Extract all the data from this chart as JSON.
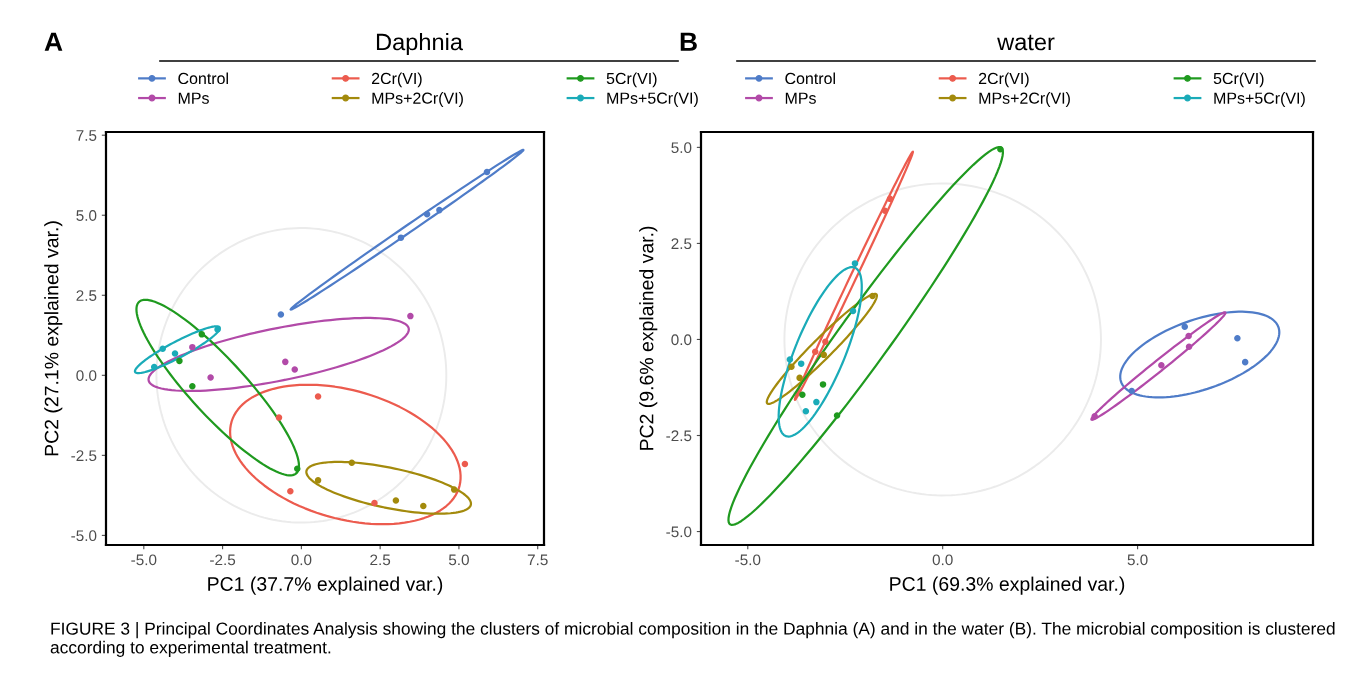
{
  "chart_data": [
    {
      "type": "scatter",
      "title": "Daphnia",
      "xlabel": "PC1 (37.7% explained var.)",
      "ylabel": "PC2 (27.1% explained var.)",
      "annotations": [
        "A"
      ],
      "xlim": [
        -6.2,
        7.7
      ],
      "ylim": [
        -5.3,
        7.6
      ],
      "xticks": [
        {
          "value": -5,
          "label": "-5.0"
        },
        {
          "value": -2.5,
          "label": "-2.5"
        },
        {
          "value": 0,
          "label": "0.0"
        },
        {
          "value": 2.5,
          "label": "2.5"
        },
        {
          "value": 5,
          "label": "5.0"
        },
        {
          "value": 7.5,
          "label": "7.5"
        }
      ],
      "yticks": [
        {
          "value": -5,
          "label": "-5.0"
        },
        {
          "value": -2.5,
          "label": "-2.5"
        },
        {
          "value": 0,
          "label": "0.0"
        },
        {
          "value": 2.5,
          "label": "2.5"
        },
        {
          "value": 5,
          "label": "5.0"
        },
        {
          "value": 7.5,
          "label": "7.5"
        }
      ],
      "grid": false,
      "legend": "top",
      "marker": "circle",
      "series": [
        {
          "type": "scatter",
          "name": "Control",
          "color": "#4f7cc8",
          "x": [
            -0.65,
            3.16,
            3.99,
            4.38,
            5.89
          ],
          "values": [
            1.9,
            4.3,
            5.03,
            5.16,
            6.35
          ]
        },
        {
          "type": "scatter",
          "name": "MPs",
          "color": "#b24aa8",
          "x": [
            3.46,
            -3.46,
            -2.88,
            -0.51,
            -0.21
          ],
          "values": [
            1.85,
            0.88,
            -0.07,
            0.42,
            0.18
          ]
        },
        {
          "type": "scatter",
          "name": "2Cr(VI)",
          "color": "#ec5b4e",
          "x": [
            0.53,
            -0.71,
            -0.35,
            2.32,
            5.19
          ],
          "values": [
            -0.66,
            -1.32,
            -3.62,
            -3.99,
            -2.77
          ]
        },
        {
          "type": "scatter",
          "name": "MPs+2Cr(VI)",
          "color": "#a38a0c",
          "x": [
            1.6,
            0.53,
            3.0,
            3.87,
            4.85
          ],
          "values": [
            -2.73,
            -3.28,
            -3.91,
            -4.08,
            -3.57
          ]
        },
        {
          "type": "scatter",
          "name": "5Cr(VI)",
          "color": "#1f9a1f",
          "x": [
            -3.16,
            -3.87,
            -3.46,
            -0.13
          ],
          "values": [
            1.28,
            0.45,
            -0.34,
            -2.92
          ]
        },
        {
          "type": "scatter",
          "name": "MPs+5Cr(VI)",
          "color": "#1aabb8",
          "x": [
            -2.66,
            -4.4,
            -4.01,
            -4.67
          ],
          "values": [
            1.43,
            0.83,
            0.68,
            0.26
          ]
        }
      ]
    },
    {
      "type": "scatter",
      "title": "water",
      "xlabel": "PC1 (69.3% explained var.)",
      "ylabel": "PC2 (9.6% explained var.)",
      "annotations": [
        "B",
        "FIGURE 3 | Principal Coordinates Analysis showing the clusters of microbial composition in the Daphnia (A) and in the water (B). The microbial composition is clustered according to experimental treatment."
      ],
      "xlim": [
        -6.2,
        9.5
      ],
      "ylim": [
        -5.35,
        5.4
      ],
      "xticks": [
        {
          "value": -5,
          "label": "-5.0"
        },
        {
          "value": 0,
          "label": "0.0"
        },
        {
          "value": 5,
          "label": "5.0"
        }
      ],
      "yticks": [
        {
          "value": -5,
          "label": "-5.0"
        },
        {
          "value": -2.5,
          "label": "-2.5"
        },
        {
          "value": 0,
          "label": "0.0"
        },
        {
          "value": 2.5,
          "label": "2.5"
        },
        {
          "value": 5,
          "label": "5.0"
        }
      ],
      "grid": false,
      "legend": "top",
      "marker": "circle",
      "series": [
        {
          "type": "scatter",
          "name": "Control",
          "color": "#4f7cc8",
          "x": [
            6.21,
            7.56,
            7.76,
            4.85
          ],
          "values": [
            0.33,
            0.03,
            -0.59,
            -1.34
          ]
        },
        {
          "type": "scatter",
          "name": "MPs",
          "color": "#b24aa8",
          "x": [
            6.31,
            6.32,
            5.61,
            3.9
          ],
          "values": [
            0.09,
            -0.19,
            -0.67,
            -2.0
          ]
        },
        {
          "type": "scatter",
          "name": "2Cr(VI)",
          "color": "#ec5b4e",
          "x": [
            -1.35,
            -1.48,
            -3.01,
            -3.27
          ],
          "values": [
            3.66,
            3.35,
            -0.06,
            -0.32
          ]
        },
        {
          "type": "scatter",
          "name": "MPs+2Cr(VI)",
          "color": "#a38a0c",
          "x": [
            -1.8,
            -3.88,
            -3.67,
            -3.05
          ],
          "values": [
            1.13,
            -0.71,
            -1.0,
            -0.4
          ]
        },
        {
          "type": "scatter",
          "name": "5Cr(VI)",
          "color": "#1f9a1f",
          "x": [
            1.48,
            -3.07,
            -3.6,
            -2.71
          ],
          "values": [
            4.95,
            -1.17,
            -1.44,
            -1.98
          ]
        },
        {
          "type": "scatter",
          "name": "MPs+5Cr(VI)",
          "color": "#1aabb8",
          "x": [
            -2.25,
            -2.3,
            -3.92,
            -3.63,
            -3.24,
            -3.51
          ],
          "values": [
            1.98,
            0.74,
            -0.52,
            -0.63,
            -1.63,
            -1.87
          ]
        }
      ]
    }
  ]
}
